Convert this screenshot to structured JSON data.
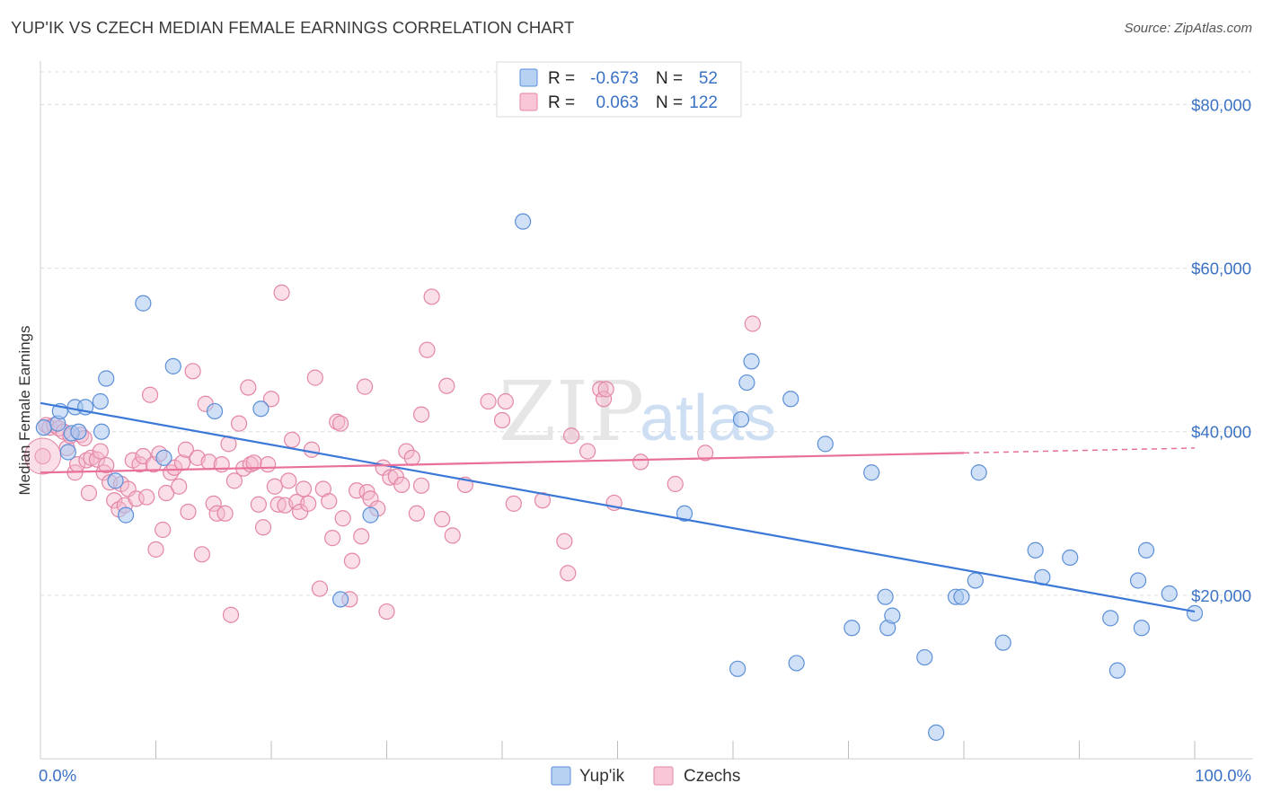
{
  "title": "YUP'IK VS CZECH MEDIAN FEMALE EARNINGS CORRELATION CHART",
  "source": "Source: ZipAtlas.com",
  "watermark": {
    "zip": "ZIP",
    "atlas": "atlas"
  },
  "colors": {
    "yupik_fill": "#a9c9f0",
    "yupik_stroke": "#5b8fd8",
    "yupik_line": "#3c78d8",
    "czech_fill": "#f5b8cb",
    "czech_stroke": "#e486a6",
    "czech_line": "#e8709a",
    "grid": "#dcdcdc",
    "tick_text": "#3b72c4"
  },
  "stats": {
    "r_label": "R =",
    "n_label": "N =",
    "yupik": {
      "r": "-0.673",
      "n": "52"
    },
    "czech": {
      "r": "0.063",
      "n": "122"
    }
  },
  "chart_data": {
    "type": "scatter",
    "title": "YUP'IK VS CZECH MEDIAN FEMALE EARNINGS CORRELATION CHART",
    "xlabel": "",
    "ylabel": "Median Female Earnings",
    "xlim": [
      0,
      100
    ],
    "ylim": [
      0,
      84000
    ],
    "x_tick_labels": [
      "0.0%",
      "100.0%"
    ],
    "y_ticks": [
      {
        "value": 20000,
        "label": "$20,000"
      },
      {
        "value": 40000,
        "label": "$40,000"
      },
      {
        "value": 60000,
        "label": "$60,000"
      },
      {
        "value": 80000,
        "label": "$80,000"
      }
    ],
    "legend": [
      "Yup'ik",
      "Czechs"
    ],
    "legend_position": "bottom-center",
    "grid": true,
    "series": [
      {
        "name": "Yup'ik",
        "trend": {
          "x": [
            0,
            100
          ],
          "y": [
            43500,
            18000
          ]
        },
        "points": [
          [
            0.3,
            40500
          ],
          [
            1.5,
            41000
          ],
          [
            1.7,
            42500
          ],
          [
            2.4,
            37500
          ],
          [
            2.7,
            39800
          ],
          [
            3.0,
            43000
          ],
          [
            3.3,
            40000
          ],
          [
            3.9,
            43000
          ],
          [
            5.2,
            43700
          ],
          [
            5.3,
            40000
          ],
          [
            5.7,
            46500
          ],
          [
            6.5,
            34000
          ],
          [
            7.4,
            29800
          ],
          [
            8.9,
            55700
          ],
          [
            10.7,
            36800
          ],
          [
            11.5,
            48000
          ],
          [
            15.1,
            42500
          ],
          [
            19.1,
            42800
          ],
          [
            26.0,
            19500
          ],
          [
            28.6,
            29800
          ],
          [
            41.8,
            65700
          ],
          [
            55.8,
            30000
          ],
          [
            60.4,
            11000
          ],
          [
            60.7,
            41500
          ],
          [
            61.2,
            46000
          ],
          [
            61.6,
            48600
          ],
          [
            65.0,
            44000
          ],
          [
            65.5,
            11700
          ],
          [
            68.0,
            38500
          ],
          [
            70.3,
            16000
          ],
          [
            72.0,
            35000
          ],
          [
            73.2,
            19800
          ],
          [
            73.4,
            16000
          ],
          [
            73.8,
            17500
          ],
          [
            76.6,
            12400
          ],
          [
            77.6,
            3200
          ],
          [
            79.3,
            19800
          ],
          [
            79.8,
            19800
          ],
          [
            81.0,
            21800
          ],
          [
            81.3,
            35000
          ],
          [
            83.4,
            14200
          ],
          [
            86.2,
            25500
          ],
          [
            86.8,
            22200
          ],
          [
            89.2,
            24600
          ],
          [
            92.7,
            17200
          ],
          [
            93.3,
            10800
          ],
          [
            95.1,
            21800
          ],
          [
            95.4,
            16000
          ],
          [
            95.8,
            25500
          ],
          [
            97.8,
            20200
          ],
          [
            100.0,
            17800
          ]
        ]
      },
      {
        "name": "Czechs",
        "trend": {
          "x": [
            0,
            80
          ],
          "y": [
            35000,
            37400
          ]
        },
        "trend_dashed": {
          "x": [
            80,
            100
          ],
          "y": [
            37400,
            38000
          ]
        },
        "points": [
          [
            0.2,
            37000
          ],
          [
            0.5,
            40800
          ],
          [
            0.8,
            40500
          ],
          [
            1.2,
            40800
          ],
          [
            1.6,
            40400
          ],
          [
            2.0,
            40000
          ],
          [
            2.3,
            38000
          ],
          [
            2.6,
            39500
          ],
          [
            3.0,
            35000
          ],
          [
            3.2,
            36000
          ],
          [
            3.5,
            39600
          ],
          [
            3.8,
            39200
          ],
          [
            4.0,
            36500
          ],
          [
            4.2,
            32500
          ],
          [
            4.4,
            36800
          ],
          [
            4.9,
            36600
          ],
          [
            5.2,
            37600
          ],
          [
            5.5,
            35000
          ],
          [
            5.7,
            35900
          ],
          [
            6.0,
            33800
          ],
          [
            6.4,
            31600
          ],
          [
            6.8,
            30500
          ],
          [
            7.0,
            33600
          ],
          [
            7.3,
            31000
          ],
          [
            7.6,
            33000
          ],
          [
            8.0,
            36500
          ],
          [
            8.3,
            31800
          ],
          [
            8.6,
            36000
          ],
          [
            8.9,
            37000
          ],
          [
            9.2,
            32000
          ],
          [
            9.5,
            44500
          ],
          [
            9.8,
            36000
          ],
          [
            10.0,
            25600
          ],
          [
            10.3,
            37300
          ],
          [
            10.6,
            28000
          ],
          [
            10.9,
            32500
          ],
          [
            11.3,
            35000
          ],
          [
            11.6,
            35600
          ],
          [
            12.0,
            33300
          ],
          [
            12.3,
            36200
          ],
          [
            12.6,
            37800
          ],
          [
            12.8,
            30200
          ],
          [
            13.2,
            47400
          ],
          [
            13.6,
            36800
          ],
          [
            14.0,
            25000
          ],
          [
            14.3,
            43400
          ],
          [
            14.6,
            36300
          ],
          [
            15.0,
            31200
          ],
          [
            15.3,
            30000
          ],
          [
            15.7,
            36000
          ],
          [
            16.0,
            30000
          ],
          [
            16.3,
            38500
          ],
          [
            16.5,
            17600
          ],
          [
            16.8,
            34000
          ],
          [
            17.2,
            41000
          ],
          [
            17.6,
            35500
          ],
          [
            18.0,
            45400
          ],
          [
            18.2,
            36000
          ],
          [
            18.5,
            36200
          ],
          [
            18.9,
            31100
          ],
          [
            19.3,
            28300
          ],
          [
            19.7,
            36000
          ],
          [
            20.0,
            44000
          ],
          [
            20.3,
            33300
          ],
          [
            20.6,
            31100
          ],
          [
            20.9,
            57000
          ],
          [
            21.2,
            31000
          ],
          [
            21.5,
            34000
          ],
          [
            21.8,
            39000
          ],
          [
            22.2,
            31400
          ],
          [
            22.5,
            30200
          ],
          [
            22.8,
            33000
          ],
          [
            23.2,
            31200
          ],
          [
            23.5,
            37800
          ],
          [
            23.8,
            46600
          ],
          [
            24.2,
            20800
          ],
          [
            24.5,
            33000
          ],
          [
            25.0,
            31500
          ],
          [
            25.3,
            27000
          ],
          [
            25.7,
            41200
          ],
          [
            26.0,
            41000
          ],
          [
            26.2,
            29400
          ],
          [
            26.8,
            19500
          ],
          [
            27.0,
            24200
          ],
          [
            27.4,
            32800
          ],
          [
            27.8,
            27200
          ],
          [
            28.1,
            45500
          ],
          [
            28.3,
            32600
          ],
          [
            28.6,
            31800
          ],
          [
            29.2,
            30600
          ],
          [
            29.7,
            35600
          ],
          [
            30.0,
            18000
          ],
          [
            30.3,
            34400
          ],
          [
            30.8,
            34500
          ],
          [
            31.3,
            33500
          ],
          [
            31.7,
            37600
          ],
          [
            32.2,
            36800
          ],
          [
            32.6,
            30000
          ],
          [
            33.0,
            42100
          ],
          [
            33.0,
            33400
          ],
          [
            33.5,
            50000
          ],
          [
            33.9,
            56500
          ],
          [
            34.8,
            29300
          ],
          [
            35.2,
            45600
          ],
          [
            35.7,
            27300
          ],
          [
            36.8,
            33500
          ],
          [
            38.8,
            43700
          ],
          [
            40.0,
            41400
          ],
          [
            40.3,
            43700
          ],
          [
            41.0,
            31200
          ],
          [
            43.5,
            31600
          ],
          [
            45.4,
            26600
          ],
          [
            45.7,
            22700
          ],
          [
            46.0,
            39500
          ],
          [
            47.4,
            37600
          ],
          [
            48.5,
            45200
          ],
          [
            48.8,
            44000
          ],
          [
            49.0,
            45200
          ],
          [
            49.7,
            31300
          ],
          [
            52.0,
            36300
          ],
          [
            55.0,
            33600
          ],
          [
            57.6,
            37400
          ],
          [
            61.7,
            53200
          ]
        ]
      }
    ]
  }
}
